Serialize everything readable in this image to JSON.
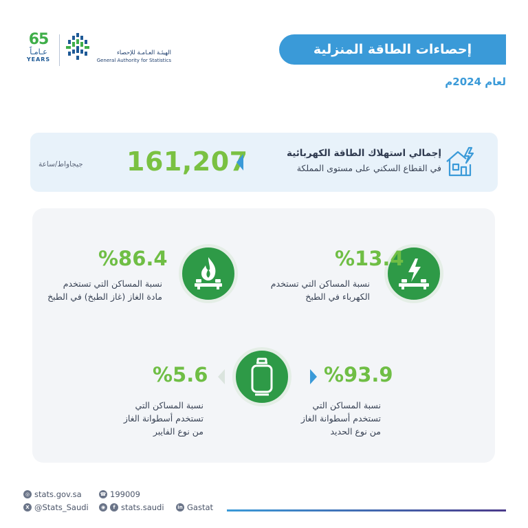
{
  "logo": {
    "anniversary_number": "65",
    "anniversary_ar": "عـامـاً",
    "anniversary_en": "YEARS",
    "org_name_ar": "الهيئـة العـامـة للإحصاء",
    "org_name_en": "General Authority for Statistics"
  },
  "header": {
    "title": "إحصاءات الطاقة المنزلية",
    "year": "لعام 2024م"
  },
  "summary": {
    "title": "إجمالي استهلاك الطاقة الكهربائية",
    "subtitle": "في القطاع السكني على مستوى المملكة",
    "value": "161,207",
    "unit": "جيجاواط/ساعة",
    "icon": "house-electricity-icon"
  },
  "stats": {
    "electric_cooking": {
      "value": "%13.4",
      "line1": "نسبة المساكن التي تستخدم",
      "line2": "الكهرباء في الطبخ",
      "icon": "electric-stove-icon"
    },
    "gas_cooking": {
      "value": "%86.4",
      "line1": "نسبة المساكن التي تستخدم",
      "line2": "مادة الغاز (غاز الطبخ) في الطبخ",
      "icon": "gas-stove-flame-icon"
    },
    "iron_cylinder": {
      "value": "%93.9",
      "line1": "نسبة المساكن التي",
      "line2": "تستخدم أسطوانة الغاز",
      "line3": "من نوع الحديد"
    },
    "fiber_cylinder": {
      "value": "%5.6",
      "line1": "نسبة المساكن التي",
      "line2": "تستخدم أسطوانة الغاز",
      "line3": "من نوع الفايبر"
    },
    "cylinder_icon": "gas-cylinder-icon"
  },
  "footer": {
    "website": "stats.gov.sa",
    "phone": "199009",
    "twitter": "@Stats_Saudi",
    "instagram_facebook": "stats.saudi",
    "linkedin": "Gastat"
  },
  "colors": {
    "accent_blue": "#3a9ad8",
    "green": "#2e9a47",
    "light_green": "#6fbe45"
  }
}
